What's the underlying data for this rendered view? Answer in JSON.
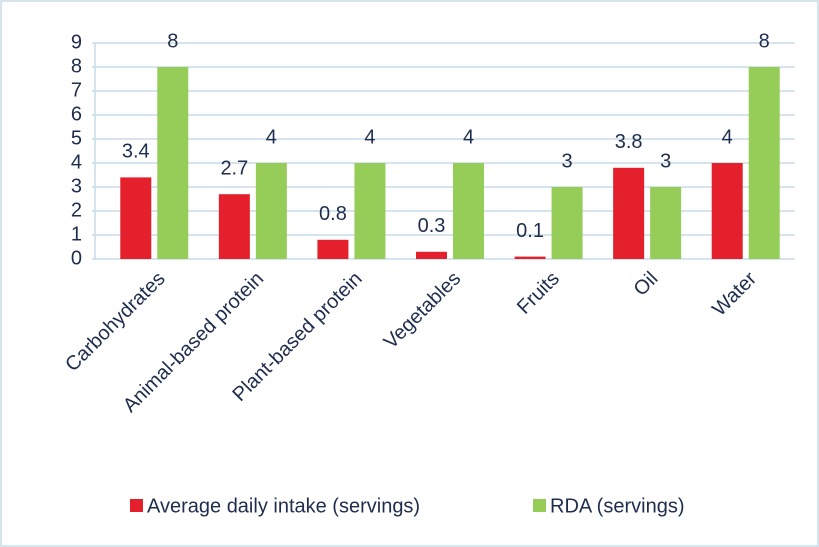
{
  "chart_data": {
    "type": "bar",
    "categories": [
      "Carbohydrates",
      "Animal-based protein",
      "Plant-based protein",
      "Vegetables",
      "Fruits",
      "Oil",
      "Water"
    ],
    "series": [
      {
        "name": "Average daily intake (servings)",
        "color": "#e3202b",
        "values": [
          3.4,
          2.7,
          0.8,
          0.3,
          0.1,
          3.8,
          4
        ]
      },
      {
        "name": "RDA (servings)",
        "color": "#96cc58",
        "values": [
          8,
          4,
          4,
          4,
          3,
          3,
          8
        ]
      }
    ],
    "ylim": [
      0,
      9
    ],
    "yticks": [
      0,
      1,
      2,
      3,
      4,
      5,
      6,
      7,
      8,
      9
    ],
    "grid": true,
    "legend": "bottom"
  }
}
